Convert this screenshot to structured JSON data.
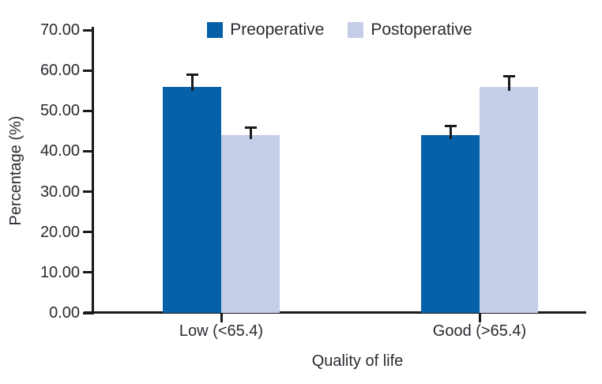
{
  "figure": {
    "background": "#ffffff",
    "text_color": "#2a2a31",
    "axis_color": "#1a1a1a"
  },
  "chart_data": {
    "type": "bar",
    "title": "",
    "categories": [
      "Low (<65.4)",
      "Good (>65.4)"
    ],
    "series": [
      {
        "name": "Preoperative",
        "color": "#0661a9",
        "values": [
          56,
          44
        ],
        "error_plus": [
          3.3,
          2.5
        ]
      },
      {
        "name": "Postoperative",
        "color": "#c5cee7",
        "values": [
          44,
          56
        ],
        "error_plus": [
          2.2,
          2.9
        ]
      }
    ],
    "xlabel": "Quality of life",
    "ylabel": "Percentage (%)",
    "ylim": [
      0,
      70
    ],
    "ytick_labels": [
      "0.00",
      "10.00",
      "20.00",
      "30.00",
      "40.00",
      "50.00",
      "60.00",
      "70.00"
    ],
    "legend_position": "top-center",
    "grid": false,
    "error_bars": "upper only, black caps"
  }
}
